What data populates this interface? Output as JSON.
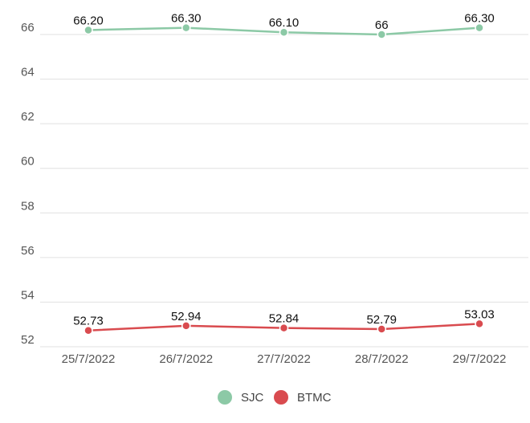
{
  "chart_data": {
    "type": "line",
    "title": "",
    "xlabel": "",
    "ylabel": "",
    "categories": [
      "25/7/2022",
      "26/7/2022",
      "27/7/2022",
      "28/7/2022",
      "29/7/2022"
    ],
    "y_ticks": [
      "52",
      "54",
      "56",
      "58",
      "60",
      "62",
      "64",
      "66"
    ],
    "ylim": [
      52,
      66
    ],
    "grid": true,
    "legend_position": "bottom-center",
    "series": [
      {
        "name": "SJC",
        "color": "#8cc9a6",
        "values": [
          66.2,
          66.3,
          66.1,
          66.0,
          66.3
        ],
        "labels": [
          "66.20",
          "66.30",
          "66.10",
          "66",
          "66.30"
        ]
      },
      {
        "name": "BTMC",
        "color": "#d94b4f",
        "values": [
          52.73,
          52.94,
          52.84,
          52.79,
          53.03
        ],
        "labels": [
          "52.73",
          "52.94",
          "52.84",
          "52.79",
          "53.03"
        ]
      }
    ]
  }
}
